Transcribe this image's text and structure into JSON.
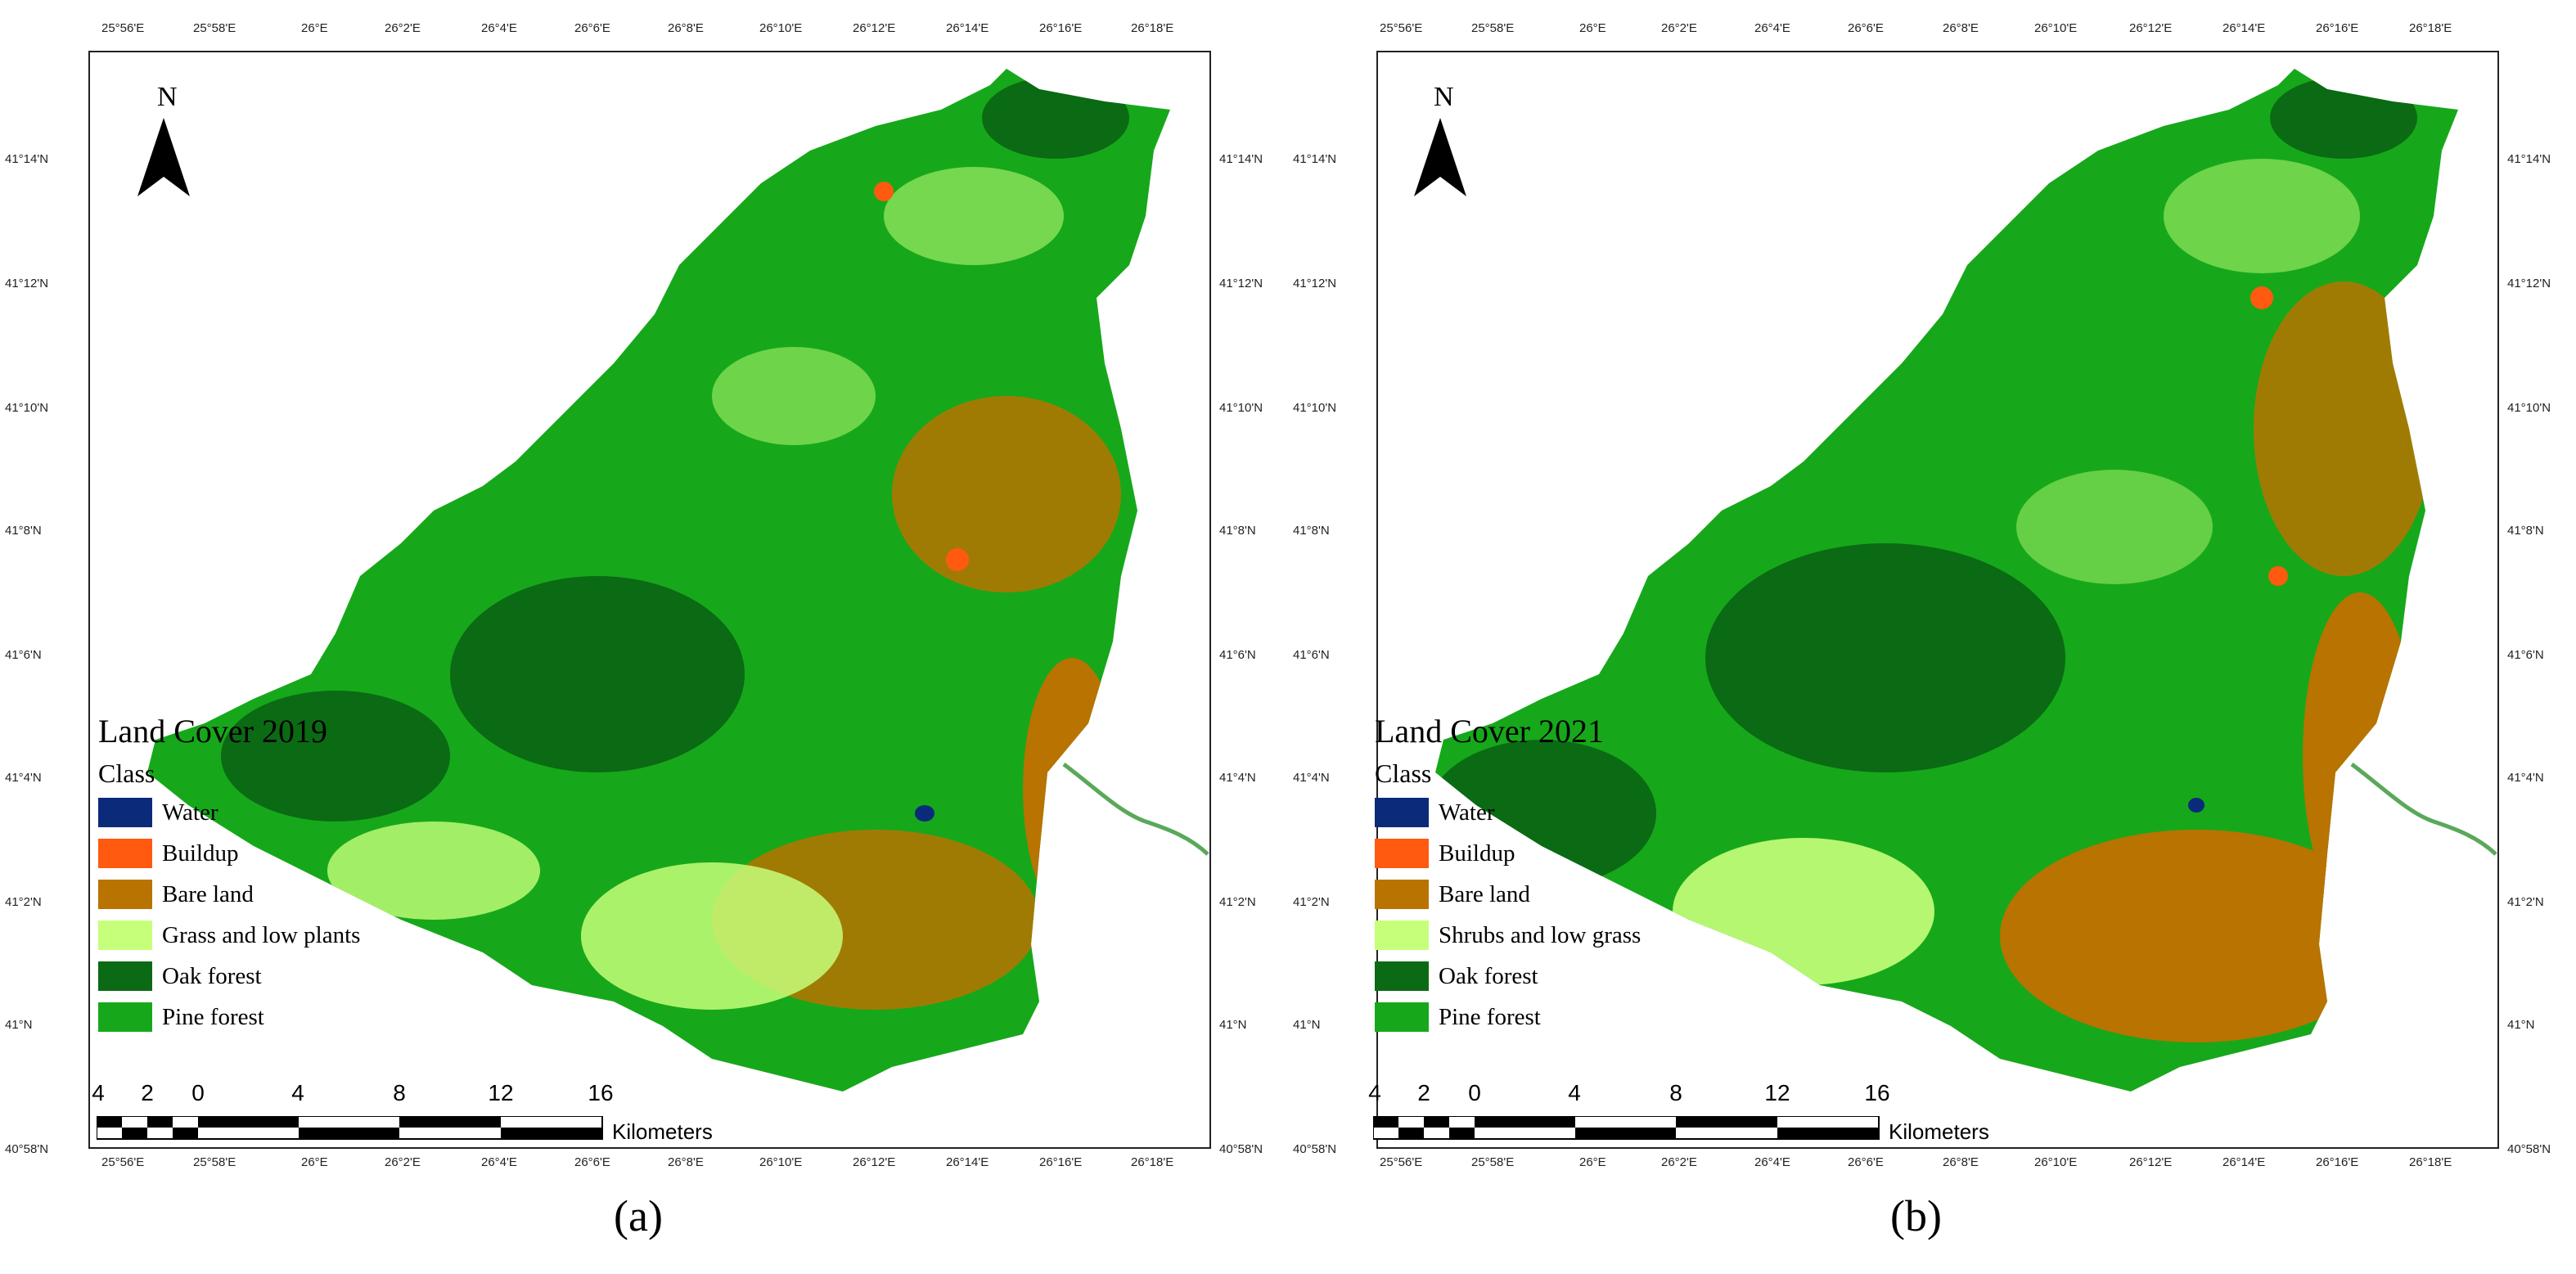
{
  "palette": {
    "water": "#0b2a7a",
    "buildup": "#ff5a10",
    "bare_land": "#b87300",
    "grass": "#c6ff7a",
    "oak_forest": "#0b6a14",
    "pine_forest": "#16a81a",
    "river": "#5aa85a"
  },
  "axes": {
    "longitude_ticks": [
      "25°56'E",
      "25°58'E",
      "26°E",
      "26°2'E",
      "26°4'E",
      "26°6'E",
      "26°8'E",
      "26°10'E",
      "26°12'E",
      "26°14'E",
      "26°16'E",
      "26°18'E"
    ],
    "latitude_ticks": [
      "41°14'N",
      "41°12'N",
      "41°10'N",
      "41°8'N",
      "41°6'N",
      "41°4'N",
      "41°2'N",
      "41°N",
      "40°58'N"
    ]
  },
  "north_arrow": {
    "letter": "N",
    "icon": "north-arrow-icon"
  },
  "scalebar": {
    "labels": [
      "4",
      "2",
      "0",
      "4",
      "8",
      "12",
      "16"
    ],
    "units": "Kilometers"
  },
  "panels": [
    {
      "caption": "(a)",
      "legend": {
        "title": "Land Cover 2019",
        "class_label": "Class",
        "items": [
          {
            "label": "Water",
            "color": "#0b2a7a"
          },
          {
            "label": "Buildup",
            "color": "#ff5a10"
          },
          {
            "label": "Bare land",
            "color": "#b87300"
          },
          {
            "label": "Grass and low plants",
            "color": "#c6ff7a"
          },
          {
            "label": "Oak forest",
            "color": "#0b6a14"
          },
          {
            "label": "Pine forest",
            "color": "#16a81a"
          }
        ]
      }
    },
    {
      "caption": "(b)",
      "legend": {
        "title": "Land Cover 2021",
        "class_label": "Class",
        "items": [
          {
            "label": "Water",
            "color": "#0b2a7a"
          },
          {
            "label": "Buildup",
            "color": "#ff5a10"
          },
          {
            "label": "Bare land",
            "color": "#b87300"
          },
          {
            "label": "Shrubs and low grass",
            "color": "#c6ff7a"
          },
          {
            "label": "Oak forest",
            "color": "#0b6a14"
          },
          {
            "label": "Pine forest",
            "color": "#16a81a"
          }
        ]
      }
    }
  ]
}
